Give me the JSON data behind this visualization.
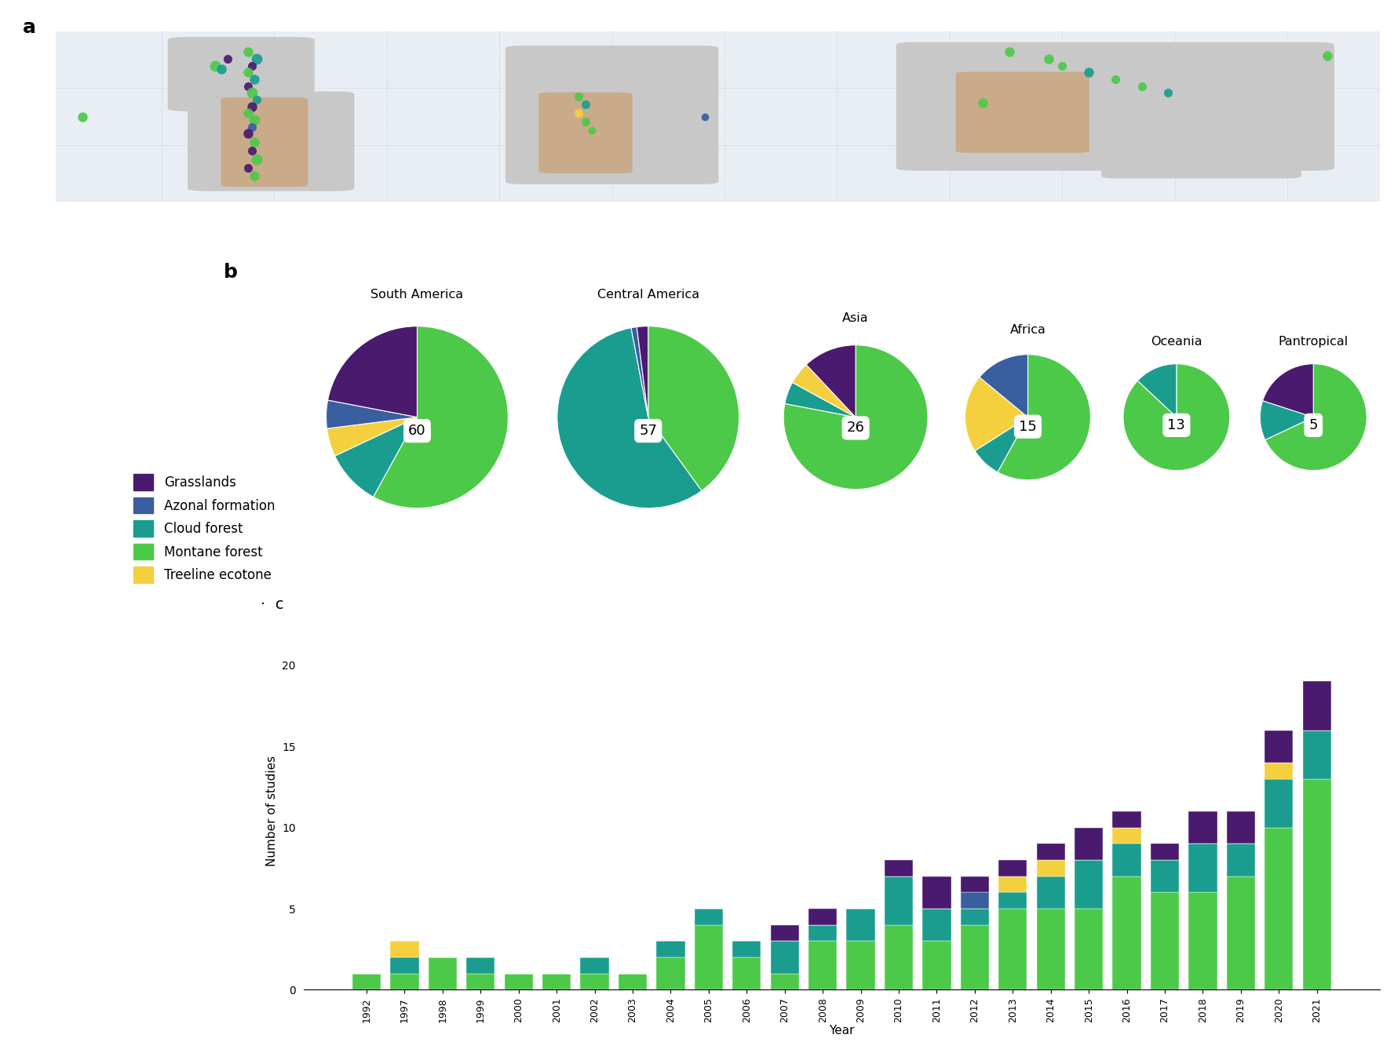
{
  "colors": {
    "grasslands": "#4a1a6e",
    "azonal": "#3a5fa0",
    "cloud_forest": "#1a9d8f",
    "montane_forest": "#4dc94a",
    "treeline": "#f4d03f"
  },
  "pie_regions": [
    "South America",
    "Central America",
    "Asia",
    "Africa",
    "Oceania",
    "Pantropical"
  ],
  "pie_totals": [
    60,
    57,
    26,
    15,
    13,
    5
  ],
  "pie_fracs": [
    [
      60,
      10,
      5,
      5,
      20
    ],
    [
      40,
      57,
      0,
      0,
      3
    ],
    [
      78,
      5,
      5,
      0,
      12
    ],
    [
      60,
      8,
      20,
      12,
      0
    ],
    [
      90,
      10,
      0,
      0,
      0
    ],
    [
      70,
      10,
      0,
      0,
      20
    ]
  ],
  "pie_size_scale": [
    1.0,
    1.0,
    0.78,
    0.65,
    0.55,
    0.55
  ],
  "bar_years": [
    "1992",
    "1997",
    "1998",
    "1999",
    "2000",
    "2001",
    "2002",
    "2003",
    "2004",
    "2005",
    "2006",
    "2007",
    "2008",
    "2009",
    "2010",
    "2011",
    "2012",
    "2013",
    "2014",
    "2015",
    "2016",
    "2017",
    "2018",
    "2019",
    "2020",
    "2021"
  ],
  "bar_data": {
    "montane_forest": [
      1,
      1,
      2,
      1,
      1,
      1,
      1,
      1,
      2,
      4,
      2,
      1,
      3,
      3,
      4,
      3,
      4,
      5,
      5,
      5,
      7,
      6,
      6,
      7,
      10,
      13
    ],
    "cloud_forest": [
      0,
      1,
      0,
      1,
      0,
      0,
      1,
      0,
      1,
      1,
      1,
      2,
      1,
      2,
      3,
      2,
      1,
      1,
      2,
      3,
      2,
      2,
      3,
      2,
      3,
      3
    ],
    "treeline": [
      0,
      1,
      0,
      0,
      0,
      0,
      0,
      0,
      0,
      0,
      0,
      0,
      0,
      0,
      0,
      0,
      0,
      1,
      1,
      0,
      1,
      0,
      0,
      0,
      1,
      0
    ],
    "azonal": [
      0,
      0,
      0,
      0,
      0,
      0,
      0,
      0,
      0,
      0,
      0,
      0,
      0,
      0,
      0,
      0,
      1,
      0,
      0,
      0,
      0,
      0,
      0,
      0,
      0,
      0
    ],
    "grasslands": [
      0,
      0,
      0,
      0,
      0,
      0,
      0,
      0,
      0,
      0,
      0,
      1,
      1,
      0,
      1,
      2,
      1,
      1,
      1,
      2,
      1,
      1,
      2,
      2,
      2,
      3
    ]
  },
  "legend_labels": [
    "Grasslands",
    "Azonal formation",
    "Cloud forest",
    "Montane forest",
    "Treeline ecotone"
  ],
  "bg_color": "#ffffff",
  "map_bg": "#f0f0f0",
  "map_ocean": "#e8eef4",
  "map_land_gray": "#c8c8c8",
  "map_land_tan": "#c9ab8a"
}
